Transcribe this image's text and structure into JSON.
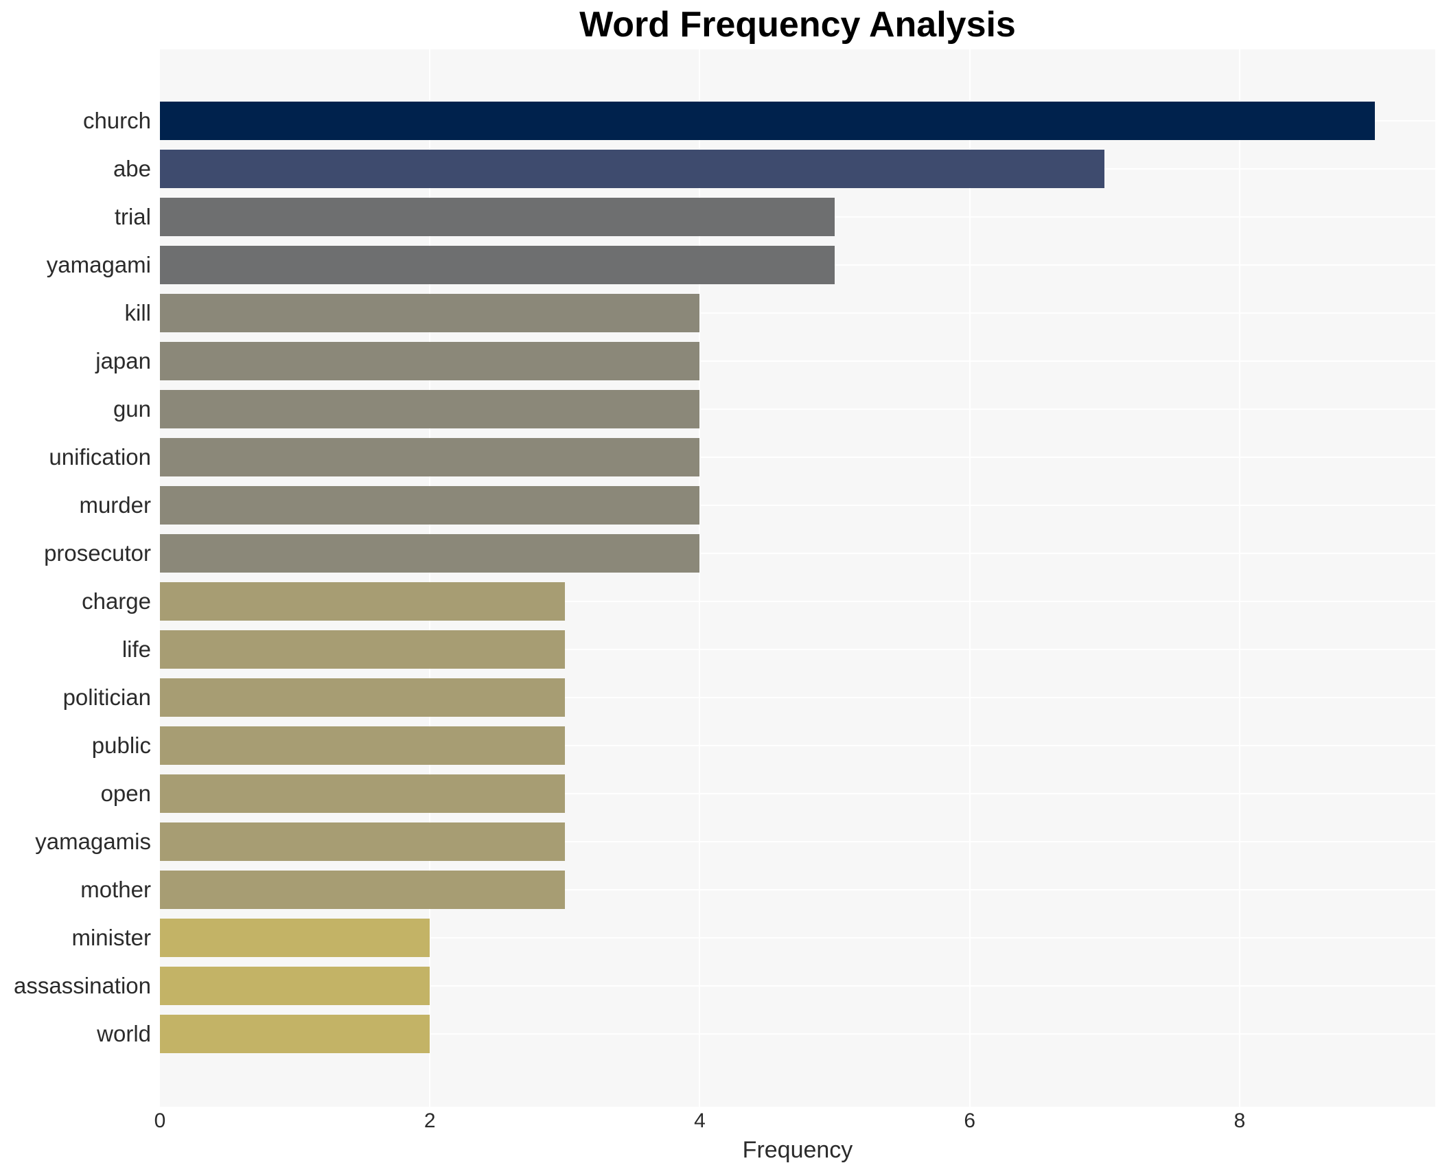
{
  "title": "Word Frequency Analysis",
  "chart_data": {
    "type": "bar",
    "orientation": "horizontal",
    "title": "Word Frequency Analysis",
    "xlabel": "Frequency",
    "ylabel": "",
    "categories": [
      "church",
      "abe",
      "trial",
      "yamagami",
      "kill",
      "japan",
      "gun",
      "unification",
      "murder",
      "prosecutor",
      "charge",
      "life",
      "politician",
      "public",
      "open",
      "yamagamis",
      "mother",
      "minister",
      "assassination",
      "world"
    ],
    "values": [
      9,
      7,
      5,
      5,
      4,
      4,
      4,
      4,
      4,
      4,
      3,
      3,
      3,
      3,
      3,
      3,
      3,
      2,
      2,
      2
    ],
    "bar_colors": [
      "#00224d",
      "#3e4b6e",
      "#6e6f70",
      "#6e6f70",
      "#8b8879",
      "#8b8879",
      "#8b8879",
      "#8b8879",
      "#8b8879",
      "#8b8879",
      "#a79d73",
      "#a79d73",
      "#a79d73",
      "#a79d73",
      "#a79d73",
      "#a79d73",
      "#a79d73",
      "#c3b366",
      "#c3b366",
      "#c3b366"
    ],
    "xlim": [
      0,
      9.45
    ],
    "xticks": [
      0,
      2,
      4,
      6,
      8
    ],
    "grid": true,
    "legend": "none",
    "plot_bg_color": "#f7f7f7",
    "grid_color": "#ffffff",
    "text_color": "#2b2b2b"
  }
}
